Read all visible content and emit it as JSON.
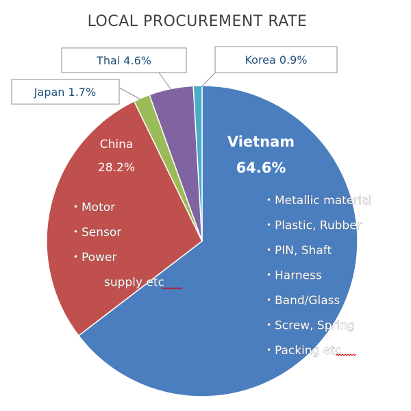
{
  "chart_data": {
    "type": "pie",
    "title": "LOCAL PROCUREMENT RATE",
    "slices": [
      {
        "name": "Vietnam",
        "value": 64.6,
        "label": "64.6%",
        "color": "#4a7ebf"
      },
      {
        "name": "China",
        "value": 28.2,
        "label": "28.2%",
        "color": "#c0504d"
      },
      {
        "name": "Japan",
        "value": 1.7,
        "label": "Japan 1.7%",
        "color": "#9bbb59"
      },
      {
        "name": "Thai",
        "value": 4.6,
        "label": "Thai 4.6%",
        "color": "#8064a2"
      },
      {
        "name": "Korea",
        "value": 0.9,
        "label": "Korea 0.9%",
        "color": "#4bacc6"
      }
    ],
    "annotations": {
      "vietnam_items": [
        "・Metallic material",
        "・Plastic, Rubber",
        "・PIN, Shaft",
        "・Harness",
        "・Band/Glass",
        "・Screw, Spring",
        "・Packing etc"
      ],
      "china_items": [
        "・Motor",
        "・Sensor",
        "・Power",
        "supply  etc"
      ]
    }
  }
}
